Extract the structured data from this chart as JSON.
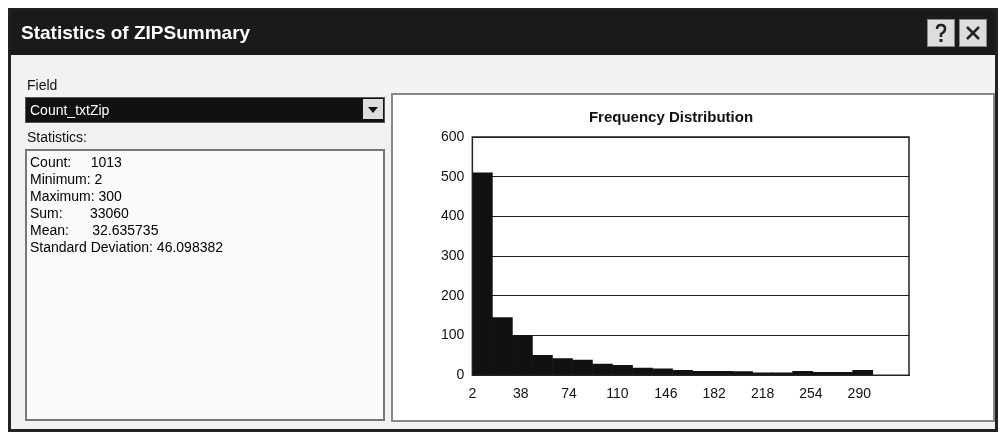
{
  "chart_data": [
    {
      "type": "other",
      "title": "Statistics of ZIPSummary",
      "annotations": [
        "Field",
        "Count_txtZip",
        "Statistics:",
        "Count:     1013",
        "Minimum: 2",
        "Maximum: 300",
        "Sum:       33060",
        "Mean:      32.635735",
        "Standard Deviation: 46.098382"
      ]
    },
    {
      "type": "histogram",
      "title": "Frequency Distribution",
      "color": "#111111",
      "bins": [
        2,
        16.9,
        31.8,
        46.7,
        61.6,
        76.5,
        91.4,
        106.3,
        121.2,
        136.1,
        151,
        165.9,
        180.8,
        195.7,
        210.6,
        225.5,
        240.4,
        255.3,
        270.2,
        285.1,
        300
      ],
      "values": [
        510,
        145,
        100,
        50,
        42,
        38,
        28,
        25,
        18,
        16,
        12,
        10,
        10,
        9,
        6,
        6,
        10,
        7,
        7,
        12
      ],
      "xlim": [
        2,
        327
      ],
      "xticks": [
        2,
        38,
        74,
        110,
        146,
        182,
        218,
        254,
        290
      ],
      "ylim": [
        0,
        600
      ],
      "yticks": [
        0,
        100,
        200,
        300,
        400,
        500,
        600
      ],
      "grid": "y"
    }
  ]
}
